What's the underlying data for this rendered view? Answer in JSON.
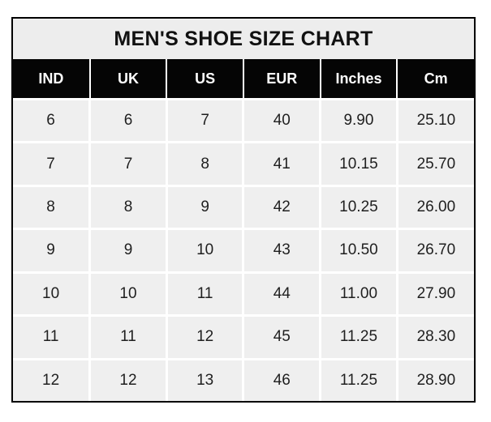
{
  "title": "MEN'S SHOE SIZE CHART",
  "colors": {
    "outer_border": "#000000",
    "title_bg": "#ededed",
    "header_bg": "#050505",
    "header_text": "#ffffff",
    "cell_bg": "#efefef",
    "cell_text": "#1f1f1f",
    "gridline": "#ffffff",
    "page_bg": "#ffffff"
  },
  "chart_data": {
    "type": "table",
    "title": "MEN'S SHOE SIZE CHART",
    "columns": [
      "IND",
      "UK",
      "US",
      "EUR",
      "Inches",
      "Cm"
    ],
    "rows": [
      [
        "6",
        "6",
        "7",
        "40",
        "9.90",
        "25.10"
      ],
      [
        "7",
        "7",
        "8",
        "41",
        "10.15",
        "25.70"
      ],
      [
        "8",
        "8",
        "9",
        "42",
        "10.25",
        "26.00"
      ],
      [
        "9",
        "9",
        "10",
        "43",
        "10.50",
        "26.70"
      ],
      [
        "10",
        "10",
        "11",
        "44",
        "11.00",
        "27.90"
      ],
      [
        "11",
        "11",
        "12",
        "45",
        "11.25",
        "28.30"
      ],
      [
        "12",
        "12",
        "13",
        "46",
        "11.25",
        "28.90"
      ]
    ]
  }
}
